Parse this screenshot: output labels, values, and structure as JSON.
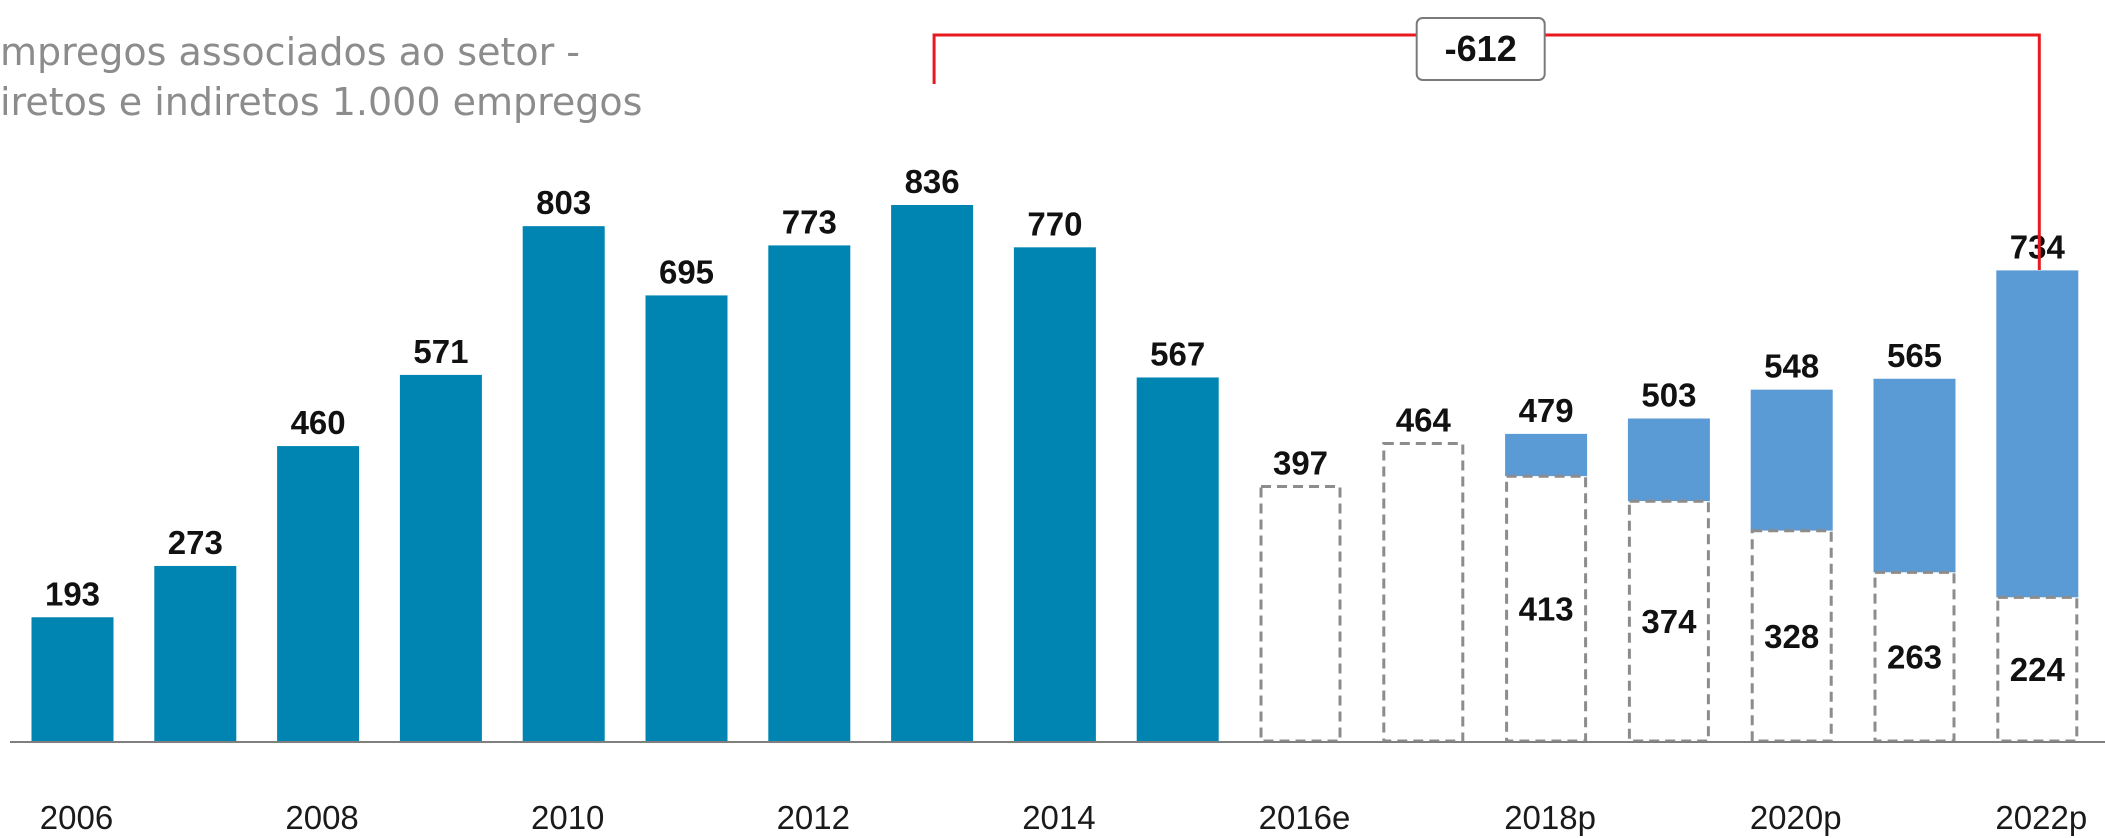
{
  "subtitle_lines": [
    "mpregos associados ao setor -",
    "iretos e indiretos 1.000 empregos"
  ],
  "colors": {
    "actual": "#0085b2",
    "projected_increment": "#5b9bd5",
    "dashed_outline": "#8c8c8c",
    "bracket": "#e8191f",
    "axis": "#7f7f7f"
  },
  "chart_data": {
    "type": "bar",
    "title": "",
    "xlabel": "",
    "ylabel": "",
    "ylim": [
      0,
      836
    ],
    "grid": false,
    "legend": "none",
    "categories": [
      "2006",
      "2007",
      "2008",
      "2009",
      "2010",
      "2011",
      "2012",
      "2013",
      "2014",
      "2015",
      "2016e",
      "2017",
      "2018p",
      "2019",
      "2020p",
      "2021",
      "2022p"
    ],
    "tick_labels": [
      "2006",
      "",
      "2008",
      "",
      "2010",
      "",
      "2012",
      "",
      "2014",
      "",
      "2016e",
      "",
      "2018p",
      "",
      "2020p",
      "",
      "2022p"
    ],
    "series": [
      {
        "role": "actual",
        "values": [
          193,
          273,
          460,
          571,
          803,
          695,
          773,
          836,
          770,
          567,
          null,
          null,
          null,
          null,
          null,
          null,
          null
        ]
      },
      {
        "role": "dashed_outline",
        "values": [
          null,
          null,
          null,
          null,
          null,
          null,
          null,
          null,
          null,
          null,
          397,
          464,
          413,
          374,
          328,
          263,
          224
        ]
      },
      {
        "role": "projected_increment",
        "values": [
          null,
          null,
          null,
          null,
          null,
          null,
          null,
          null,
          null,
          null,
          null,
          null,
          66,
          129,
          220,
          302,
          510
        ]
      }
    ],
    "totals": [
      193,
      273,
      460,
      571,
      803,
      695,
      773,
      836,
      770,
      567,
      397,
      464,
      479,
      503,
      548,
      565,
      734
    ],
    "annotation": {
      "text": "-612",
      "from_category": "2013",
      "to_category": "2022p"
    }
  }
}
